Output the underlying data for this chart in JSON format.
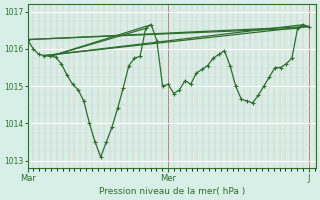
{
  "title": "",
  "xlabel": "Pression niveau de la mer( hPa )",
  "ylabel": "",
  "bg_color": "#d8efe8",
  "plot_bg_color": "#d8efe8",
  "line_color": "#2d6e2d",
  "ylim": [
    1012.8,
    1017.2
  ],
  "yticks": [
    1013,
    1014,
    1015,
    1016,
    1017
  ],
  "lines": [
    [
      0.0,
      1016.25
    ],
    [
      0.04,
      1016.0
    ],
    [
      0.08,
      1015.85
    ],
    [
      0.12,
      1015.82
    ],
    [
      0.16,
      1015.8
    ],
    [
      0.2,
      1015.78
    ],
    [
      0.24,
      1015.6
    ],
    [
      0.28,
      1015.3
    ],
    [
      0.32,
      1015.05
    ],
    [
      0.36,
      1014.9
    ],
    [
      0.4,
      1014.6
    ],
    [
      0.44,
      1014.0
    ],
    [
      0.48,
      1013.5
    ],
    [
      0.52,
      1013.1
    ],
    [
      0.56,
      1013.5
    ],
    [
      0.6,
      1013.9
    ],
    [
      0.64,
      1014.4
    ],
    [
      0.68,
      1014.95
    ],
    [
      0.72,
      1015.55
    ],
    [
      0.76,
      1015.75
    ],
    [
      0.8,
      1015.8
    ],
    [
      0.84,
      1016.55
    ],
    [
      0.88,
      1016.65
    ],
    [
      0.92,
      1016.2
    ],
    [
      0.96,
      1015.0
    ],
    [
      1.0,
      1015.05
    ],
    [
      1.04,
      1014.8
    ],
    [
      1.08,
      1014.9
    ],
    [
      1.12,
      1015.15
    ],
    [
      1.16,
      1015.05
    ],
    [
      1.2,
      1015.35
    ],
    [
      1.24,
      1015.45
    ],
    [
      1.28,
      1015.55
    ],
    [
      1.32,
      1015.75
    ],
    [
      1.36,
      1015.85
    ],
    [
      1.4,
      1015.95
    ],
    [
      1.44,
      1015.55
    ],
    [
      1.48,
      1015.0
    ],
    [
      1.52,
      1014.65
    ],
    [
      1.56,
      1014.6
    ],
    [
      1.6,
      1014.55
    ],
    [
      1.64,
      1014.75
    ],
    [
      1.68,
      1015.0
    ],
    [
      1.72,
      1015.25
    ],
    [
      1.76,
      1015.5
    ],
    [
      1.8,
      1015.5
    ],
    [
      1.84,
      1015.6
    ],
    [
      1.88,
      1015.75
    ],
    [
      1.92,
      1016.55
    ],
    [
      1.96,
      1016.65
    ],
    [
      2.0,
      1016.6
    ]
  ],
  "straight_lines": [
    [
      [
        0.0,
        1016.25
      ],
      [
        2.0,
        1016.6
      ]
    ],
    [
      [
        0.0,
        1016.25
      ],
      [
        1.92,
        1016.55
      ]
    ],
    [
      [
        0.12,
        1015.82
      ],
      [
        1.96,
        1016.65
      ]
    ],
    [
      [
        0.12,
        1015.82
      ],
      [
        2.0,
        1016.6
      ]
    ],
    [
      [
        0.16,
        1015.8
      ],
      [
        0.88,
        1016.65
      ]
    ],
    [
      [
        0.16,
        1015.8
      ],
      [
        0.84,
        1016.55
      ]
    ]
  ]
}
